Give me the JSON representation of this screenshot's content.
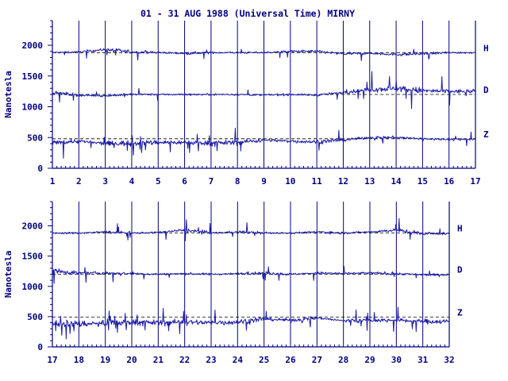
{
  "title": "01 - 31 AUG 1988 (Universal Time) MIRNY",
  "colors": {
    "axis": "#000080",
    "trace": "#1a1aa8",
    "text": "#000080",
    "background": "#ffffff"
  },
  "chart_data": [
    {
      "type": "line",
      "ylabel": "Nanotesla",
      "ylim": [
        0,
        2400
      ],
      "yticks": [
        0,
        500,
        1000,
        1500,
        2000
      ],
      "xlim": [
        1,
        17
      ],
      "xticks": [
        1,
        2,
        3,
        4,
        5,
        6,
        7,
        8,
        9,
        10,
        11,
        12,
        13,
        14,
        15,
        16,
        17
      ],
      "grid": "vertical day lines",
      "series": [
        {
          "name": "H",
          "baseline": 1880,
          "values_day_means": [
            1880,
            1890,
            1930,
            1890,
            1880,
            1870,
            1880,
            1880,
            1880,
            1900,
            1900,
            1860,
            1870,
            1850,
            1860,
            1880
          ]
        },
        {
          "name": "D",
          "baseline": 1200,
          "values_day_means": [
            1230,
            1190,
            1180,
            1200,
            1200,
            1200,
            1200,
            1200,
            1190,
            1200,
            1190,
            1230,
            1280,
            1300,
            1260,
            1250
          ]
        },
        {
          "name": "Z",
          "baseline": 480,
          "values_day_means": [
            420,
            440,
            400,
            410,
            420,
            420,
            410,
            420,
            460,
            440,
            430,
            460,
            500,
            500,
            480,
            470
          ]
        }
      ]
    },
    {
      "type": "line",
      "ylabel": "Nanotesla",
      "ylim": [
        0,
        2400
      ],
      "yticks": [
        0,
        500,
        1000,
        1500,
        2000
      ],
      "xlim": [
        17,
        32
      ],
      "xticks": [
        17,
        18,
        19,
        20,
        21,
        22,
        23,
        24,
        25,
        26,
        27,
        28,
        29,
        30,
        31,
        32
      ],
      "grid": "vertical day lines",
      "series": [
        {
          "name": "H",
          "baseline": 1880,
          "values_day_means": [
            1880,
            1880,
            1900,
            1880,
            1890,
            1930,
            1880,
            1900,
            1880,
            1880,
            1900,
            1880,
            1900,
            1930,
            1870
          ]
        },
        {
          "name": "D",
          "baseline": 1200,
          "values_day_means": [
            1260,
            1220,
            1220,
            1210,
            1200,
            1210,
            1200,
            1210,
            1220,
            1200,
            1220,
            1210,
            1220,
            1210,
            1190
          ]
        },
        {
          "name": "Z",
          "baseline": 490,
          "values_day_means": [
            390,
            380,
            390,
            410,
            400,
            410,
            400,
            410,
            460,
            440,
            480,
            430,
            440,
            440,
            420
          ]
        }
      ]
    }
  ]
}
